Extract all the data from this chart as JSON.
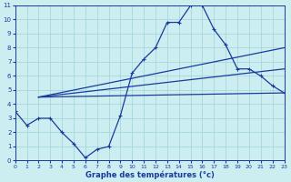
{
  "title": "Graphe des températures (°c)",
  "bg_color": "#cceef0",
  "line_color": "#1a3a9e",
  "grid_color": "#9dd4d8",
  "xlim": [
    0,
    23
  ],
  "ylim": [
    0,
    11
  ],
  "xticks": [
    0,
    1,
    2,
    3,
    4,
    5,
    6,
    7,
    8,
    9,
    10,
    11,
    12,
    13,
    14,
    15,
    16,
    17,
    18,
    19,
    20,
    21,
    22,
    23
  ],
  "yticks": [
    0,
    1,
    2,
    3,
    4,
    5,
    6,
    7,
    8,
    9,
    10,
    11
  ],
  "line1_x": [
    0,
    1,
    2,
    3,
    4,
    5,
    6,
    7,
    8,
    9,
    10,
    11,
    12,
    13,
    14,
    15,
    16,
    17,
    18,
    19,
    20,
    21,
    22,
    23
  ],
  "line1_y": [
    3.5,
    2.5,
    3.0,
    3.0,
    2.0,
    1.2,
    0.2,
    0.8,
    1.0,
    3.2,
    6.2,
    7.2,
    8.0,
    9.8,
    9.8,
    11.0,
    11.0,
    9.3,
    8.2,
    6.5,
    6.5,
    6.0,
    5.3,
    4.8
  ],
  "line2_x": [
    2,
    23
  ],
  "line2_y": [
    4.5,
    8.0
  ],
  "line3_x": [
    2,
    23
  ],
  "line3_y": [
    4.5,
    6.5
  ],
  "line4_x": [
    2,
    23
  ],
  "line4_y": [
    4.5,
    4.8
  ]
}
